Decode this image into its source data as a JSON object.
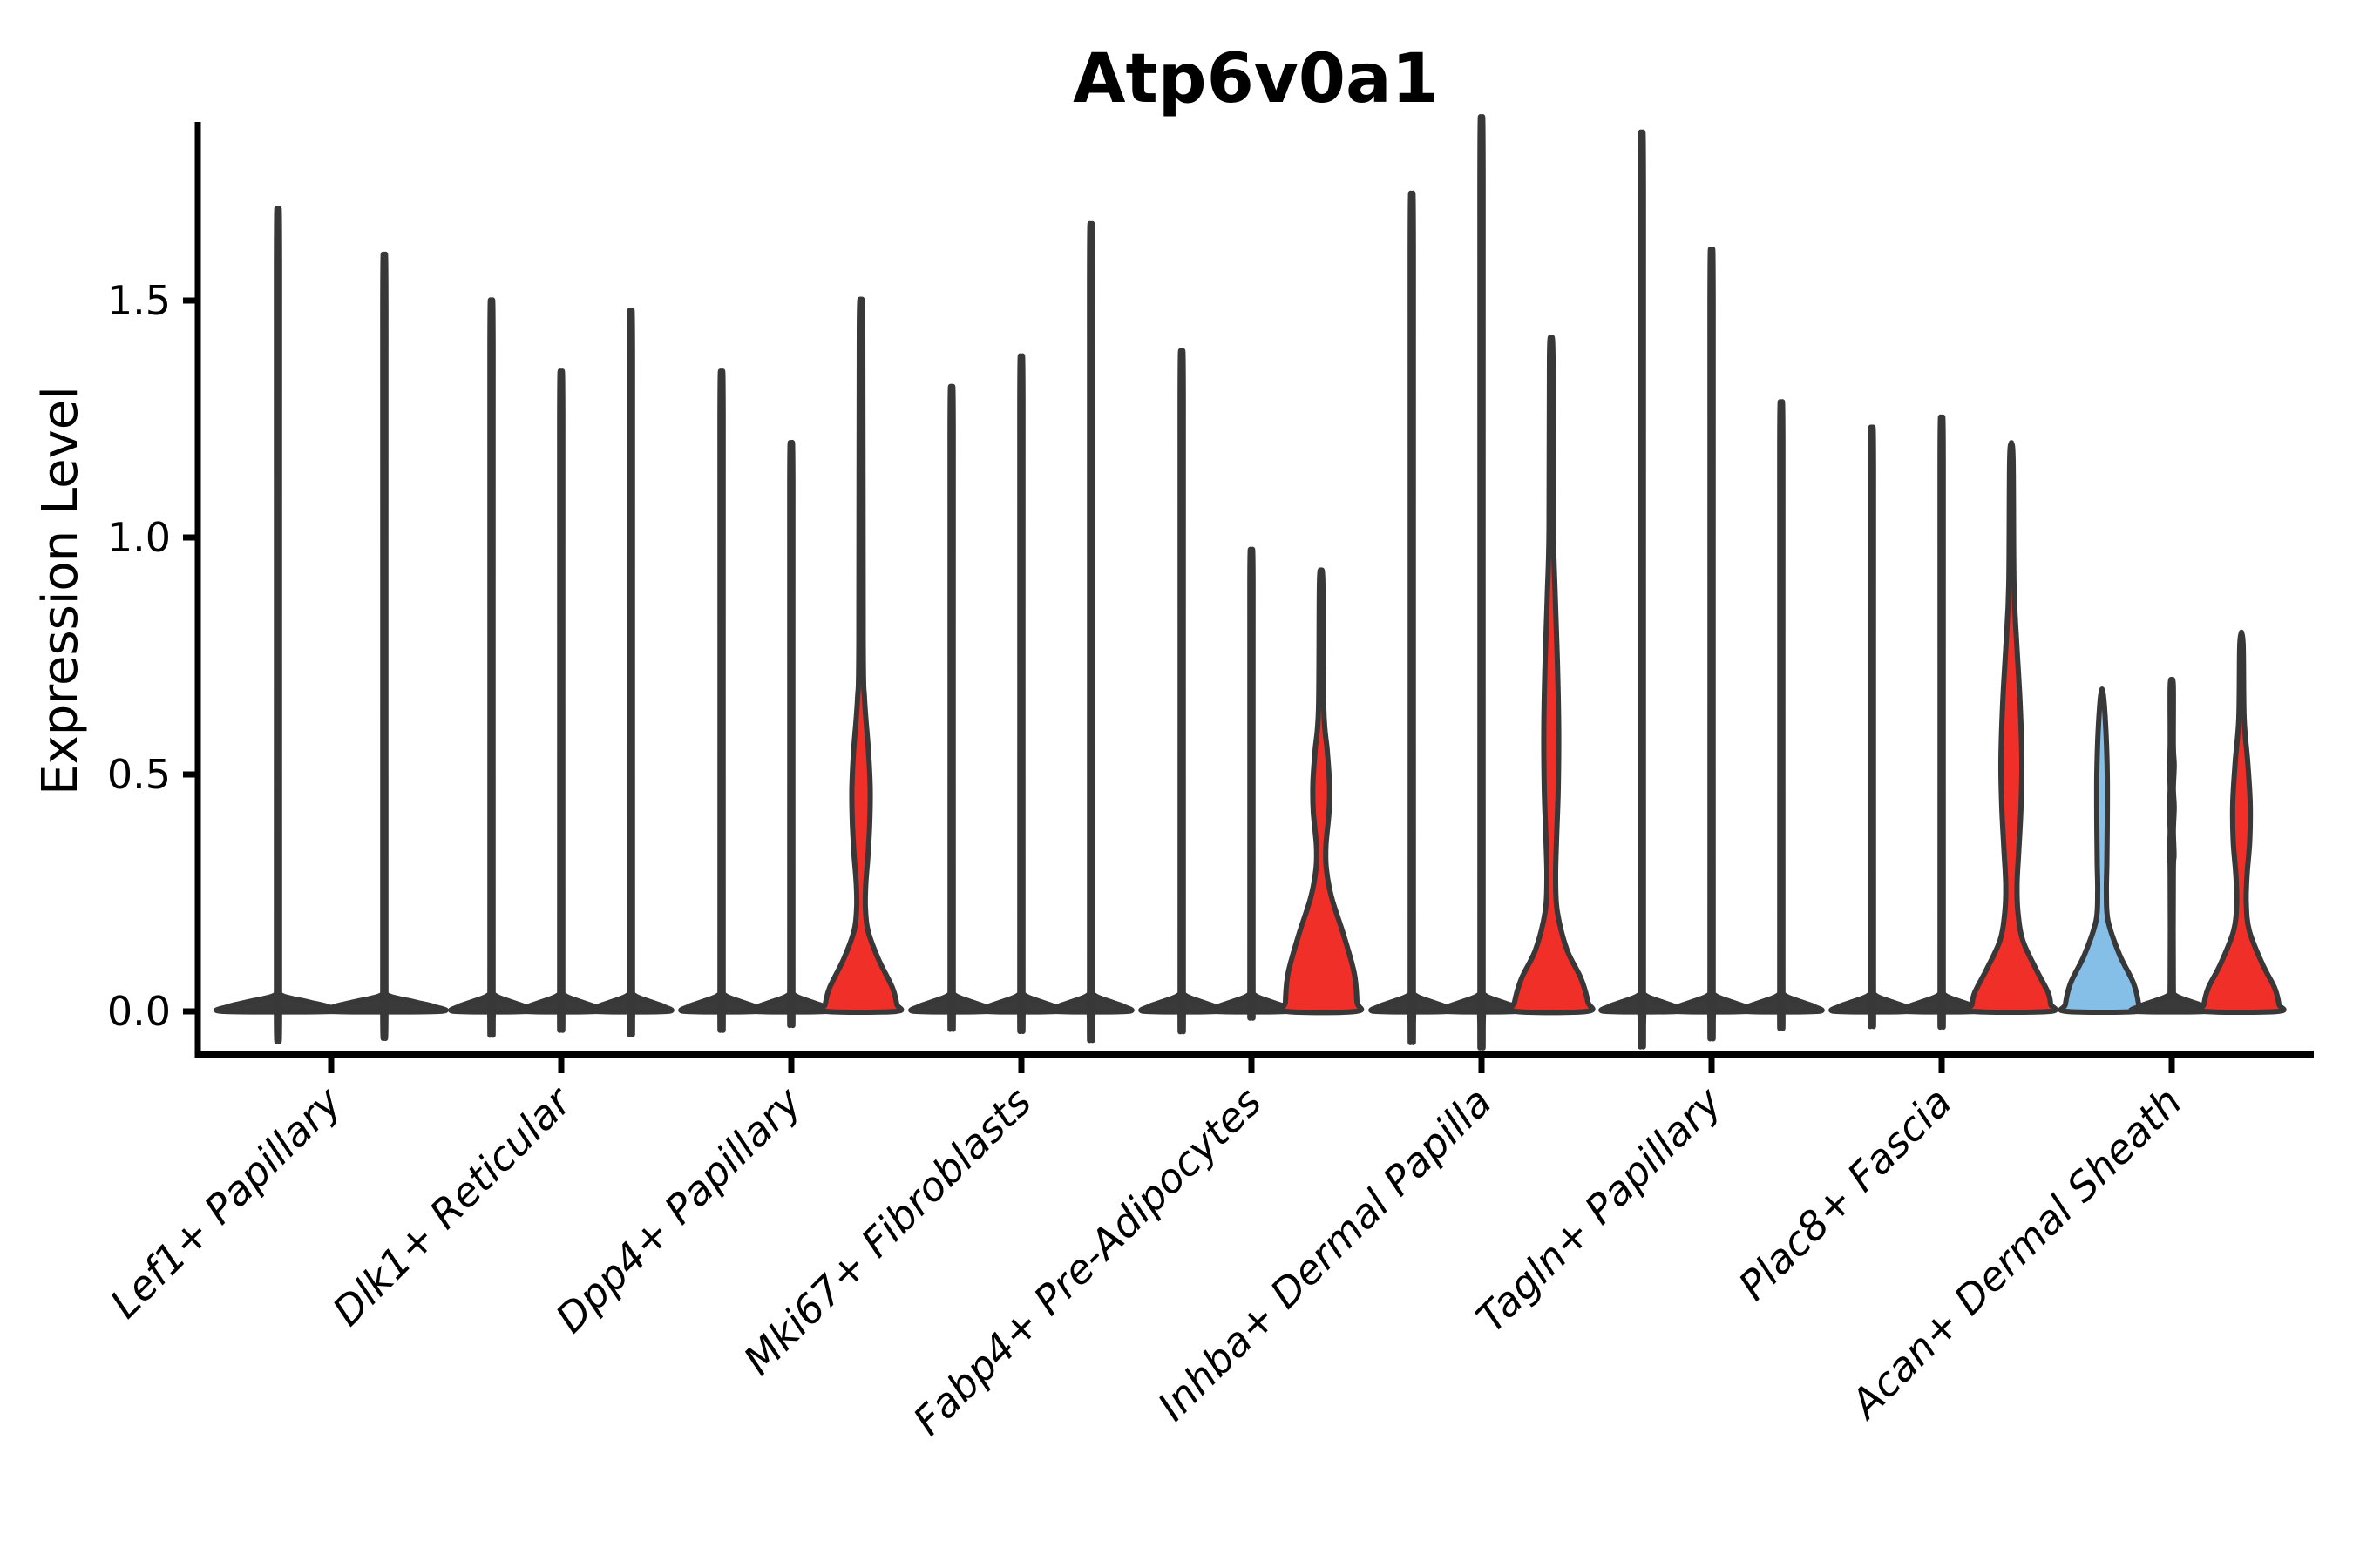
{
  "chart_data": {
    "type": "violin",
    "title": "Atp6v0a1",
    "ylabel": "Expression Level",
    "xlabel": "",
    "ylim": [
      0,
      1.88
    ],
    "grid": false,
    "legend": "none",
    "yticks": [
      0.0,
      0.5,
      1.0,
      1.5
    ],
    "ytick_labels": [
      "0.0",
      "0.5",
      "1.0",
      "1.5"
    ],
    "categories": [
      "Lef1+ Papillary",
      "Dlk1+ Reticular",
      "Dpp4+ Papillary",
      "Mki67+ Fibroblasts",
      "Fabp4+ Pre-Adipocytes",
      "Inhba+ Dermal Papilla",
      "Tagln+ Papillary",
      "Plac8+ Fascia",
      "Acan+ Dermal Sheath"
    ],
    "colors": {
      "red": "#f03028",
      "blue": "#85bfe7",
      "outline": "#383838",
      "plain": "#3a3a3a",
      "axis": "#000000"
    },
    "violins": [
      {
        "category": 0,
        "slot": 0,
        "n_slots": 2,
        "max": 1.59,
        "fill": "plain"
      },
      {
        "category": 0,
        "slot": 1,
        "n_slots": 2,
        "max": 1.5,
        "fill": "plain"
      },
      {
        "category": 1,
        "slot": 0,
        "n_slots": 3,
        "max": 1.41,
        "fill": "plain"
      },
      {
        "category": 1,
        "slot": 1,
        "n_slots": 3,
        "max": 1.27,
        "fill": "plain"
      },
      {
        "category": 1,
        "slot": 2,
        "n_slots": 3,
        "max": 1.39,
        "fill": "plain"
      },
      {
        "category": 2,
        "slot": 0,
        "n_slots": 3,
        "max": 1.27,
        "fill": "plain"
      },
      {
        "category": 2,
        "slot": 1,
        "n_slots": 3,
        "max": 1.13,
        "fill": "plain"
      },
      {
        "category": 2,
        "slot": 2,
        "n_slots": 3,
        "max": 1.48,
        "fill": "red",
        "profile": [
          [
            1.48,
            0
          ],
          [
            1.44,
            2
          ],
          [
            0.78,
            2.5
          ],
          [
            0.66,
            4
          ],
          [
            0.55,
            8.5
          ],
          [
            0.47,
            10.5
          ],
          [
            0.4,
            10
          ],
          [
            0.33,
            8
          ],
          [
            0.27,
            5.5
          ],
          [
            0.22,
            5
          ],
          [
            0.17,
            8
          ],
          [
            0.11,
            20
          ],
          [
            0.05,
            36
          ],
          [
            0.015,
            41
          ],
          [
            0,
            40
          ]
        ]
      },
      {
        "category": 3,
        "slot": 0,
        "n_slots": 3,
        "max": 1.24,
        "fill": "plain"
      },
      {
        "category": 3,
        "slot": 1,
        "n_slots": 3,
        "max": 1.3,
        "fill": "plain"
      },
      {
        "category": 3,
        "slot": 2,
        "n_slots": 3,
        "max": 1.56,
        "fill": "plain"
      },
      {
        "category": 4,
        "slot": 0,
        "n_slots": 3,
        "max": 1.31,
        "fill": "plain"
      },
      {
        "category": 4,
        "slot": 1,
        "n_slots": 3,
        "max": 0.92,
        "fill": "plain"
      },
      {
        "category": 4,
        "slot": 2,
        "n_slots": 3,
        "max": 0.93,
        "fill": "red",
        "profile": [
          [
            0.93,
            0
          ],
          [
            0.9,
            2
          ],
          [
            0.64,
            3
          ],
          [
            0.55,
            7
          ],
          [
            0.48,
            9.5
          ],
          [
            0.42,
            9
          ],
          [
            0.35,
            5.5
          ],
          [
            0.3,
            6
          ],
          [
            0.24,
            12
          ],
          [
            0.16,
            26
          ],
          [
            0.08,
            38
          ],
          [
            0.02,
            41
          ],
          [
            0,
            40
          ]
        ]
      },
      {
        "category": 5,
        "slot": 0,
        "n_slots": 3,
        "max": 1.62,
        "fill": "plain"
      },
      {
        "category": 5,
        "slot": 1,
        "n_slots": 3,
        "max": 1.77,
        "fill": "plain"
      },
      {
        "category": 5,
        "slot": 2,
        "n_slots": 3,
        "max": 1.42,
        "fill": "red",
        "profile": [
          [
            1.42,
            0
          ],
          [
            1.38,
            2
          ],
          [
            1.02,
            2.5
          ],
          [
            0.88,
            4.5
          ],
          [
            0.74,
            7
          ],
          [
            0.6,
            8.5
          ],
          [
            0.47,
            8
          ],
          [
            0.36,
            6
          ],
          [
            0.28,
            5
          ],
          [
            0.21,
            7
          ],
          [
            0.13,
            18
          ],
          [
            0.07,
            34
          ],
          [
            0.02,
            42
          ],
          [
            0,
            41
          ]
        ]
      },
      {
        "category": 6,
        "slot": 0,
        "n_slots": 3,
        "max": 1.74,
        "fill": "plain"
      },
      {
        "category": 6,
        "slot": 1,
        "n_slots": 3,
        "max": 1.51,
        "fill": "plain"
      },
      {
        "category": 6,
        "slot": 2,
        "n_slots": 3,
        "max": 1.21,
        "fill": "plain"
      },
      {
        "category": 7,
        "slot": 0,
        "n_slots": 3,
        "max": 1.16,
        "fill": "plain"
      },
      {
        "category": 7,
        "slot": 1,
        "n_slots": 3,
        "max": 1.18,
        "fill": "plain"
      },
      {
        "category": 7,
        "slot": 2,
        "n_slots": 3,
        "max": 1.2,
        "fill": "red",
        "profile": [
          [
            1.2,
            0
          ],
          [
            1.16,
            2
          ],
          [
            0.9,
            3
          ],
          [
            0.78,
            6
          ],
          [
            0.65,
            10
          ],
          [
            0.53,
            12
          ],
          [
            0.43,
            11
          ],
          [
            0.34,
            8.5
          ],
          [
            0.27,
            6.5
          ],
          [
            0.21,
            7.5
          ],
          [
            0.15,
            13
          ],
          [
            0.09,
            28
          ],
          [
            0.04,
            42
          ],
          [
            0.015,
            45
          ],
          [
            0,
            44
          ]
        ]
      },
      {
        "category": 8,
        "slot": 0,
        "n_slots": 3,
        "max": 0.68,
        "fill": "blue",
        "profile": [
          [
            0.68,
            0
          ],
          [
            0.66,
            2
          ],
          [
            0.59,
            4.5
          ],
          [
            0.5,
            6
          ],
          [
            0.4,
            6
          ],
          [
            0.31,
            5.5
          ],
          [
            0.25,
            5
          ],
          [
            0.19,
            7
          ],
          [
            0.12,
            20
          ],
          [
            0.06,
            36
          ],
          [
            0.015,
            42
          ],
          [
            0,
            41
          ]
        ]
      },
      {
        "category": 8,
        "slot": 1,
        "n_slots": 3,
        "max": 0.7,
        "fill": "plain",
        "profile": [
          [
            0.7,
            0
          ],
          [
            0.685,
            1.8
          ],
          [
            0.56,
            1.8
          ],
          [
            0.52,
            2.8
          ],
          [
            0.47,
            1.8
          ],
          [
            0.43,
            2.8
          ],
          [
            0.38,
            1.8
          ],
          [
            0.33,
            2.6
          ],
          [
            0.29,
            1.8
          ],
          [
            0.055,
            1.8
          ],
          [
            0.034,
            4
          ],
          [
            0.02,
            23
          ],
          [
            0.01,
            38
          ],
          [
            0,
            41
          ]
        ]
      },
      {
        "category": 8,
        "slot": 2,
        "n_slots": 3,
        "max": 0.8,
        "fill": "red",
        "profile": [
          [
            0.8,
            0
          ],
          [
            0.77,
            2
          ],
          [
            0.62,
            3
          ],
          [
            0.53,
            7
          ],
          [
            0.44,
            10
          ],
          [
            0.36,
            9.5
          ],
          [
            0.29,
            6.5
          ],
          [
            0.23,
            5.5
          ],
          [
            0.17,
            9
          ],
          [
            0.1,
            24
          ],
          [
            0.05,
            38
          ],
          [
            0.015,
            43
          ],
          [
            0,
            42
          ]
        ]
      }
    ]
  }
}
